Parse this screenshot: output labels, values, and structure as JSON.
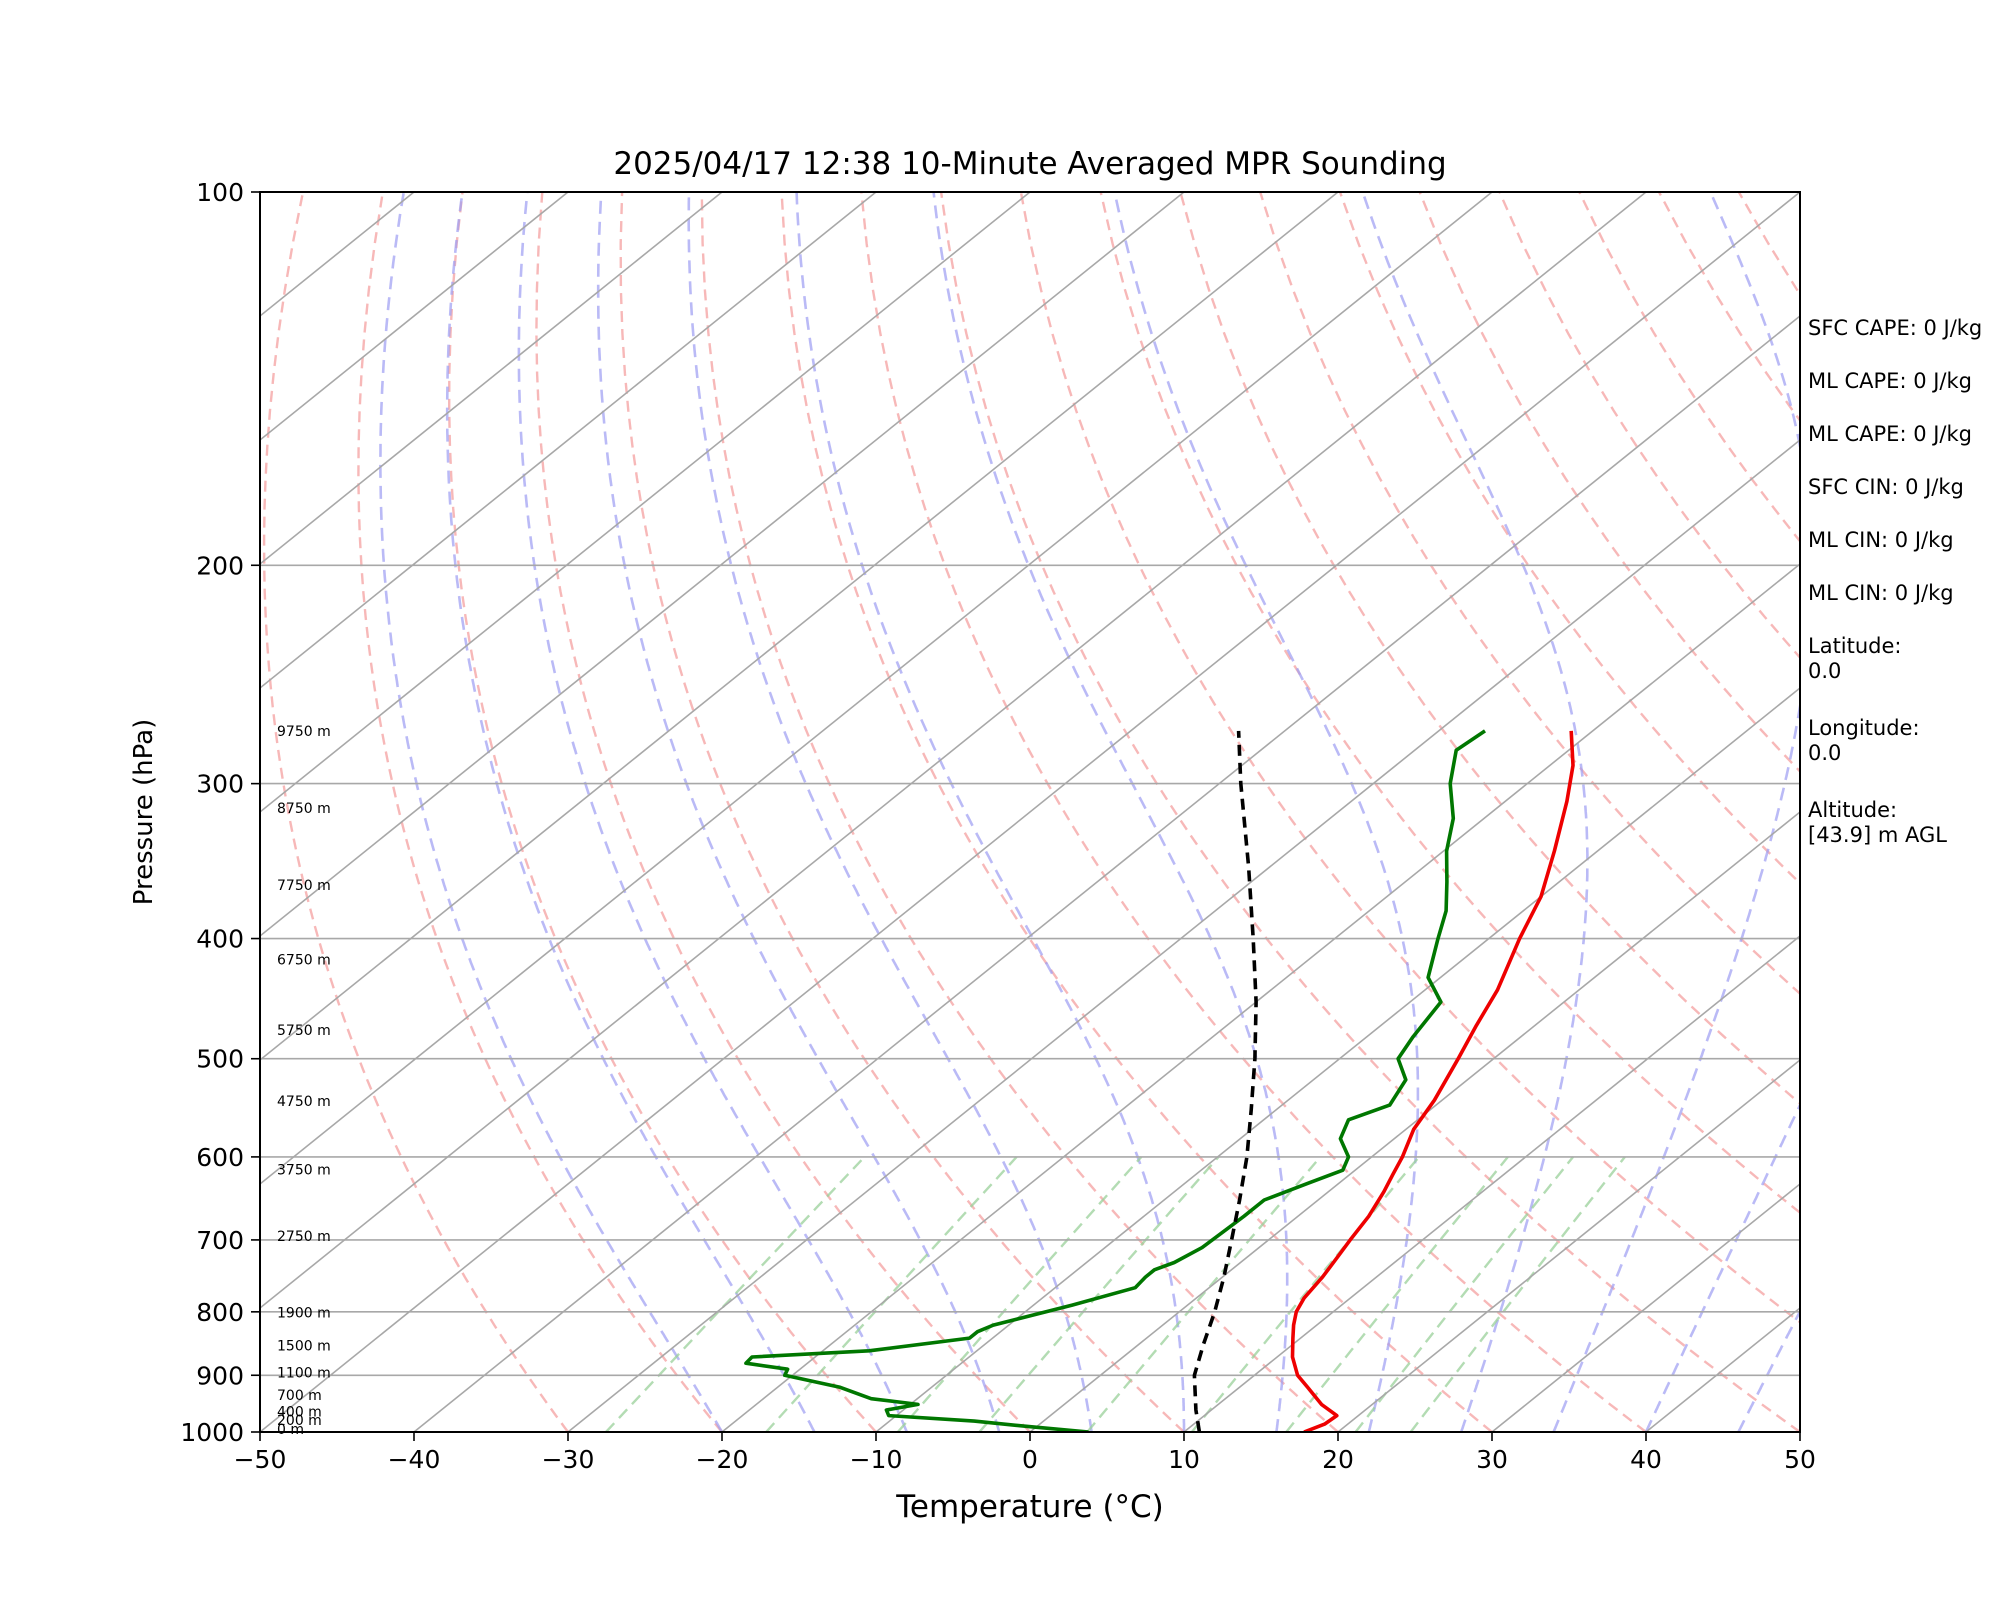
{
  "chart_data": {
    "type": "line",
    "title": "2025/04/17 12:38 10-Minute Averaged MPR Sounding",
    "xlabel": "Temperature (°C)",
    "ylabel": "Pressure (hPa)",
    "xlim": [
      -50,
      50
    ],
    "ylim": [
      1000,
      100
    ],
    "y_scale": "log",
    "skew_t": true,
    "x_ticks": [
      -50,
      -40,
      -30,
      -20,
      -10,
      0,
      10,
      20,
      30,
      40,
      50
    ],
    "x_tick_labels": [
      "−50",
      "−40",
      "−30",
      "−20",
      "−10",
      "0",
      "10",
      "20",
      "30",
      "40",
      "50"
    ],
    "y_ticks": [
      1000,
      900,
      800,
      700,
      600,
      500,
      400,
      300,
      200,
      100
    ],
    "y_tick_labels": [
      "1000",
      "900",
      "800",
      "700",
      "600",
      "500",
      "400",
      "300",
      "200",
      "100"
    ],
    "grid": true,
    "series": [
      {
        "color": "#ee0000",
        "points": [
          [
            1000,
            17.8
          ],
          [
            985,
            18.5
          ],
          [
            970,
            18.6
          ],
          [
            950,
            16.7
          ],
          [
            920,
            14.4
          ],
          [
            900,
            12.8
          ],
          [
            870,
            11.0
          ],
          [
            840,
            9.5
          ],
          [
            820,
            8.5
          ],
          [
            800,
            7.6
          ],
          [
            780,
            7.0
          ],
          [
            750,
            6.5
          ],
          [
            720,
            5.8
          ],
          [
            700,
            5.3
          ],
          [
            670,
            4.6
          ],
          [
            640,
            3.6
          ],
          [
            620,
            2.8
          ],
          [
            600,
            2.0
          ],
          [
            570,
            0.5
          ],
          [
            540,
            -0.5
          ],
          [
            500,
            -2.3
          ],
          [
            470,
            -3.8
          ],
          [
            440,
            -5.3
          ],
          [
            400,
            -8.0
          ],
          [
            370,
            -10.0
          ],
          [
            340,
            -12.8
          ],
          [
            310,
            -16.0
          ],
          [
            290,
            -18.5
          ],
          [
            272,
            -21.4
          ]
        ]
      },
      {
        "color": "#007700",
        "points": [
          [
            1000,
            3.8
          ],
          [
            990,
            -0.5
          ],
          [
            980,
            -4.5
          ],
          [
            970,
            -10.5
          ],
          [
            960,
            -11.1
          ],
          [
            950,
            -9.5
          ],
          [
            940,
            -13.0
          ],
          [
            920,
            -16.0
          ],
          [
            900,
            -20.5
          ],
          [
            890,
            -20.8
          ],
          [
            880,
            -24.0
          ],
          [
            870,
            -24.1
          ],
          [
            860,
            -17.0
          ],
          [
            840,
            -11.5
          ],
          [
            830,
            -11.5
          ],
          [
            820,
            -11.0
          ],
          [
            790,
            -7.5
          ],
          [
            765,
            -4.8
          ],
          [
            750,
            -5.0
          ],
          [
            740,
            -5.0
          ],
          [
            730,
            -4.3
          ],
          [
            710,
            -3.7
          ],
          [
            690,
            -3.6
          ],
          [
            670,
            -3.5
          ],
          [
            650,
            -3.5
          ],
          [
            630,
            -2.0
          ],
          [
            615,
            -0.8
          ],
          [
            600,
            -1.5
          ],
          [
            580,
            -3.5
          ],
          [
            560,
            -4.5
          ],
          [
            545,
            -3.0
          ],
          [
            520,
            -4.0
          ],
          [
            500,
            -6.2
          ],
          [
            480,
            -7.0
          ],
          [
            450,
            -8.0
          ],
          [
            430,
            -10.8
          ],
          [
            400,
            -13.3
          ],
          [
            380,
            -15.0
          ],
          [
            360,
            -17.3
          ],
          [
            340,
            -19.8
          ],
          [
            320,
            -22.0
          ],
          [
            300,
            -25.0
          ],
          [
            282,
            -27.3
          ],
          [
            272,
            -27.0
          ]
        ]
      },
      {
        "color": "#000000",
        "dashed": true,
        "points": [
          [
            1000,
            11.0
          ],
          [
            960,
            9.0
          ],
          [
            900,
            6.1
          ],
          [
            850,
            4.2
          ],
          [
            800,
            2.3
          ],
          [
            750,
            0.1
          ],
          [
            700,
            -2.4
          ],
          [
            650,
            -5.1
          ],
          [
            600,
            -8.1
          ],
          [
            550,
            -11.6
          ],
          [
            500,
            -15.5
          ],
          [
            450,
            -20.0
          ],
          [
            400,
            -25.3
          ],
          [
            350,
            -31.4
          ],
          [
            300,
            -38.6
          ],
          [
            272,
            -43.0
          ]
        ]
      }
    ],
    "height_labels": [
      {
        "text": "9750 m",
        "p": 272
      },
      {
        "text": "8750 m",
        "p": 314
      },
      {
        "text": "7750 m",
        "p": 362
      },
      {
        "text": "6750 m",
        "p": 416
      },
      {
        "text": "5750 m",
        "p": 474
      },
      {
        "text": "4750 m",
        "p": 541
      },
      {
        "text": "3750 m",
        "p": 614
      },
      {
        "text": "2750 m",
        "p": 695
      },
      {
        "text": "1900 m",
        "p": 801
      },
      {
        "text": "1500 m",
        "p": 852
      },
      {
        "text": "1100 m",
        "p": 895
      },
      {
        "text": "700 m",
        "p": 934
      },
      {
        "text": "400 m",
        "p": 963
      },
      {
        "text": "200 m",
        "p": 978
      },
      {
        "text": "0 m",
        "p": 994
      }
    ]
  },
  "side_info": {
    "lines": [
      "SFC CAPE: 0 J/kg",
      "ML CAPE: 0 J/kg",
      "ML CAPE: 0 J/kg",
      "SFC CIN: 0 J/kg",
      "ML CIN: 0 J/kg",
      "ML CIN: 0 J/kg"
    ],
    "latitude_label": "Latitude:",
    "latitude_value": "0.0",
    "longitude_label": "Longitude:",
    "longitude_value": "0.0",
    "altitude_label": "Altitude:",
    "altitude_value": "[43.9] m AGL"
  }
}
